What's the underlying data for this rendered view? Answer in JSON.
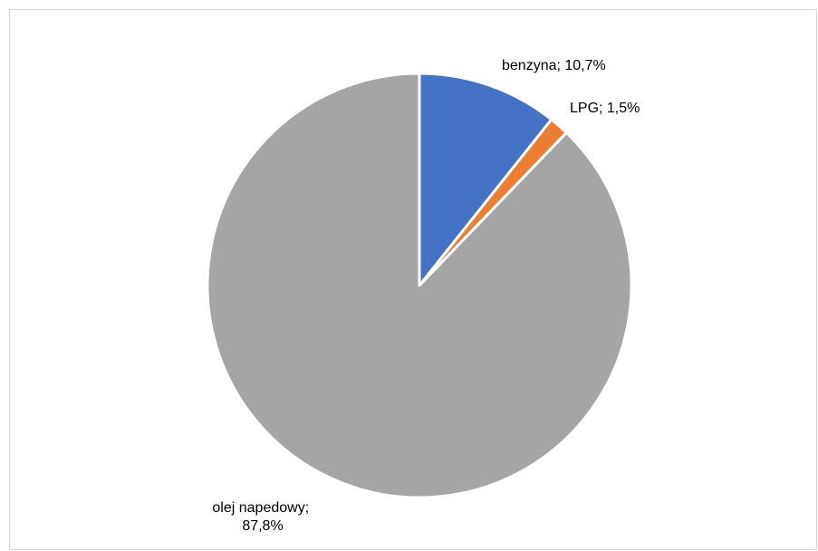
{
  "chart_data": {
    "type": "pie",
    "title": "",
    "slices": [
      {
        "label": "benzyna",
        "value": 10.7,
        "text": "benzyna; 10,7%",
        "color": "#4472C4"
      },
      {
        "label": "LPG",
        "value": 1.5,
        "text": "LPG; 1,5%",
        "color": "#ED7D31"
      },
      {
        "label": "olej napedowy",
        "value": 87.8,
        "text": "olej napedowy;",
        "text2": "87,8%",
        "color": "#A5A5A5"
      }
    ],
    "start_angle": "12 o'clock",
    "direction": "clockwise",
    "legend": "none"
  }
}
